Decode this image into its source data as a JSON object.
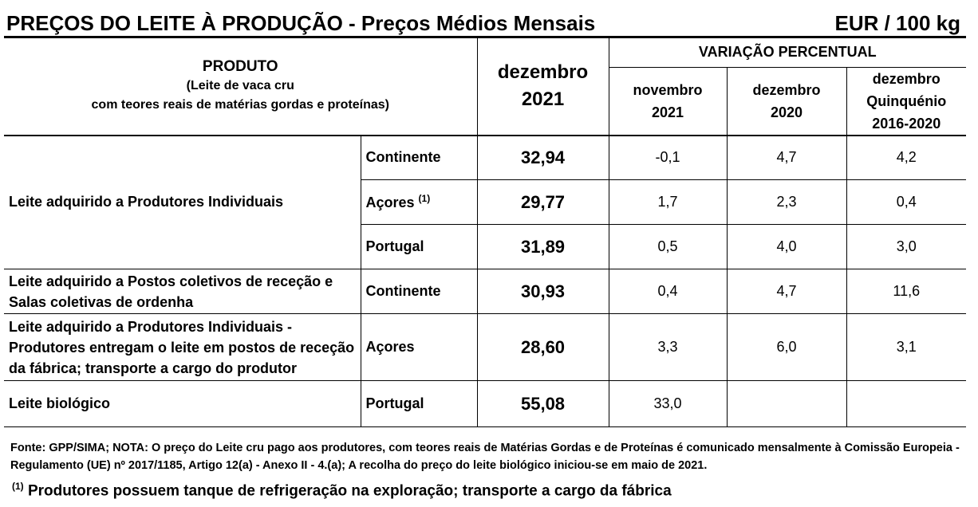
{
  "title": "PREÇOS DO LEITE À PRODUÇÃO - Preços Médios Mensais",
  "unit": "EUR / 100 kg",
  "header": {
    "produto": "PRODUTO",
    "produto_sub1": "(Leite de vaca cru",
    "produto_sub2": "com teores reais de matérias gordas e proteínas)",
    "month": "dezembro",
    "year": "2021",
    "variation": "VARIAÇÃO PERCENTUAL",
    "var_cols": [
      {
        "l1": "novembro",
        "l2": "2021"
      },
      {
        "l1": "dezembro",
        "l2": "2020"
      },
      {
        "l1": "dezembro",
        "l2": "Quinquénio",
        "l3": "2016-2020"
      }
    ]
  },
  "groups": [
    {
      "label": "Leite adquirido a Produtores Individuais"
    },
    {
      "label1": "Leite adquirido a Postos coletivos de receção e",
      "label2": "Salas coletivas de ordenha"
    },
    {
      "label1": "Leite adquirido a Produtores Individuais -",
      "label2": "Produtores entregam o leite em postos de receção",
      "label3": "da fábrica; transporte a cargo do produtor"
    },
    {
      "label": "Leite biológico"
    }
  ],
  "rows": [
    {
      "region": "Continente",
      "value": "32,94",
      "v1": "-0,1",
      "v2": "4,7",
      "v3": "4,2"
    },
    {
      "region": "Açores",
      "sup": "(1)",
      "value": "29,77",
      "v1": "1,7",
      "v2": "2,3",
      "v3": "0,4"
    },
    {
      "region": "Portugal",
      "value": "31,89",
      "v1": "0,5",
      "v2": "4,0",
      "v3": "3,0"
    },
    {
      "region": "Continente",
      "value": "30,93",
      "v1": "0,4",
      "v2": "4,7",
      "v3": "11,6"
    },
    {
      "region": "Açores",
      "value": "28,60",
      "v1": "3,3",
      "v2": "6,0",
      "v3": "3,1"
    },
    {
      "region": "Portugal",
      "value": "55,08",
      "v1": "33,0",
      "v2": "",
      "v3": ""
    }
  ],
  "footer": "Fonte: GPP/SIMA; NOTA: O preço do Leite cru pago aos produtores, com teores reais de Matérias Gordas e de Proteínas é comunicado mensalmente à  Comissão Europeia - Regulamento (UE) nº 2017/1185, Artigo 12(a) - Anexo II - 4.(a); A recolha do preço do leite biológico iniciou-se em maio de 2021.",
  "footnote_mark": "(1)",
  "footnote": " Produtores possuem tanque de refrigeração na exploração; transporte a cargo da fábrica"
}
